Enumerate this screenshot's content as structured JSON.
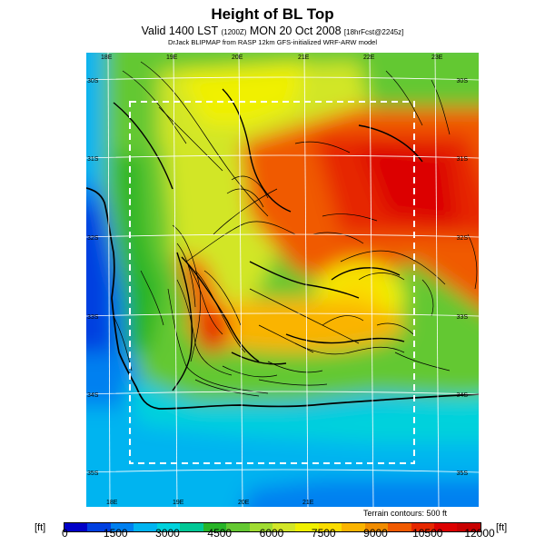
{
  "header": {
    "title": "Height of BL Top",
    "valid_prefix": "Valid 1400 LST",
    "valid_utc": "(1200Z)",
    "valid_date": "MON 20 Oct 2008",
    "forecast_tag": "[18hrFcst@2245z]",
    "credit": "DrJack BLIPMAP from RASP 12km GFS-initialized WRF-ARW model"
  },
  "map": {
    "longitude_labels": [
      "18E",
      "19E",
      "20E",
      "21E",
      "22E",
      "23E"
    ],
    "latitude_labels": [
      "30S",
      "31S",
      "32S",
      "33S",
      "34S",
      "35S"
    ],
    "terrain_note": "Terrain contours: 500 ft"
  },
  "colorbar": {
    "unit_label": "[ft]",
    "tick_labels": [
      "0",
      "1500",
      "3000",
      "4500",
      "6000",
      "7500",
      "9000",
      "10500",
      "12000"
    ],
    "colors": [
      "#0000c8",
      "#0040e0",
      "#0080f0",
      "#00b4f0",
      "#00d2dc",
      "#00c896",
      "#28b428",
      "#64c832",
      "#a0dc32",
      "#d2e628",
      "#f0f000",
      "#fadc00",
      "#fab400",
      "#f08c00",
      "#f05a00",
      "#e62800",
      "#dc0000",
      "#c80000"
    ]
  }
}
